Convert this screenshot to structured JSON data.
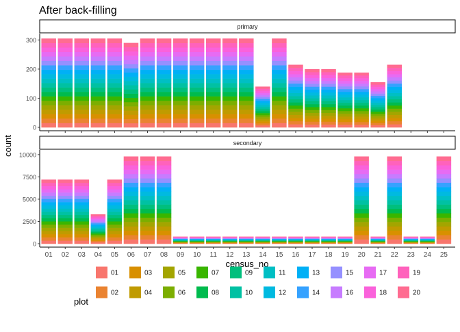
{
  "chart_data": {
    "type": "bar",
    "title": "After back-filling",
    "xlabel": "census_no",
    "ylabel": "count",
    "stacked": true,
    "facet_layout": "rows",
    "grid": false,
    "legend_position": "bottom",
    "categories": [
      "01",
      "02",
      "03",
      "04",
      "05",
      "06",
      "07",
      "08",
      "09",
      "10",
      "11",
      "12",
      "13",
      "14",
      "15",
      "16",
      "17",
      "18",
      "19",
      "20",
      "21",
      "22",
      "23",
      "24",
      "25"
    ],
    "stack_order": [
      "01",
      "02",
      "03",
      "04",
      "05",
      "06",
      "07",
      "08",
      "09",
      "10",
      "11",
      "12",
      "13",
      "14",
      "15",
      "16",
      "17",
      "18",
      "19",
      "20"
    ],
    "legend": {
      "title": "plot",
      "items": [
        {
          "label": "01",
          "color": "#F8766D"
        },
        {
          "label": "02",
          "color": "#EA8331"
        },
        {
          "label": "03",
          "color": "#D89000"
        },
        {
          "label": "04",
          "color": "#C09B00"
        },
        {
          "label": "05",
          "color": "#A3A500"
        },
        {
          "label": "06",
          "color": "#7CAE00"
        },
        {
          "label": "07",
          "color": "#39B600"
        },
        {
          "label": "08",
          "color": "#00BB4E"
        },
        {
          "label": "09",
          "color": "#00BF7D"
        },
        {
          "label": "10",
          "color": "#00C1A3"
        },
        {
          "label": "11",
          "color": "#00BFC4"
        },
        {
          "label": "12",
          "color": "#00BAE0"
        },
        {
          "label": "13",
          "color": "#00B0F6"
        },
        {
          "label": "14",
          "color": "#35A2FF"
        },
        {
          "label": "15",
          "color": "#9590FF"
        },
        {
          "label": "16",
          "color": "#C77CFF"
        },
        {
          "label": "17",
          "color": "#E76BF3"
        },
        {
          "label": "18",
          "color": "#FA62DB"
        },
        {
          "label": "19",
          "color": "#FF62BC"
        },
        {
          "label": "20",
          "color": "#FF6C91"
        }
      ]
    },
    "panels": [
      {
        "strip": "primary",
        "ylim": [
          0,
          315
        ],
        "yticks": [
          0,
          100,
          200,
          300
        ],
        "ytick_labels": [
          "0",
          "100",
          "200",
          "300"
        ],
        "totals": [
          305,
          305,
          305,
          305,
          305,
          290,
          305,
          305,
          305,
          305,
          305,
          305,
          305,
          140,
          305,
          215,
          200,
          200,
          188,
          188,
          155,
          215,
          null,
          null,
          null
        ]
      },
      {
        "strip": "secondary",
        "ylim": [
          0,
          10300
        ],
        "yticks": [
          0,
          2500,
          5000,
          7500,
          10000
        ],
        "ytick_labels": [
          "0",
          "2500",
          "5000",
          "7500",
          "10000"
        ],
        "totals": [
          7200,
          7200,
          7200,
          3300,
          7200,
          9800,
          9800,
          9800,
          800,
          800,
          800,
          800,
          800,
          800,
          800,
          800,
          800,
          800,
          800,
          9800,
          800,
          9800,
          800,
          800,
          9800
        ]
      }
    ]
  }
}
